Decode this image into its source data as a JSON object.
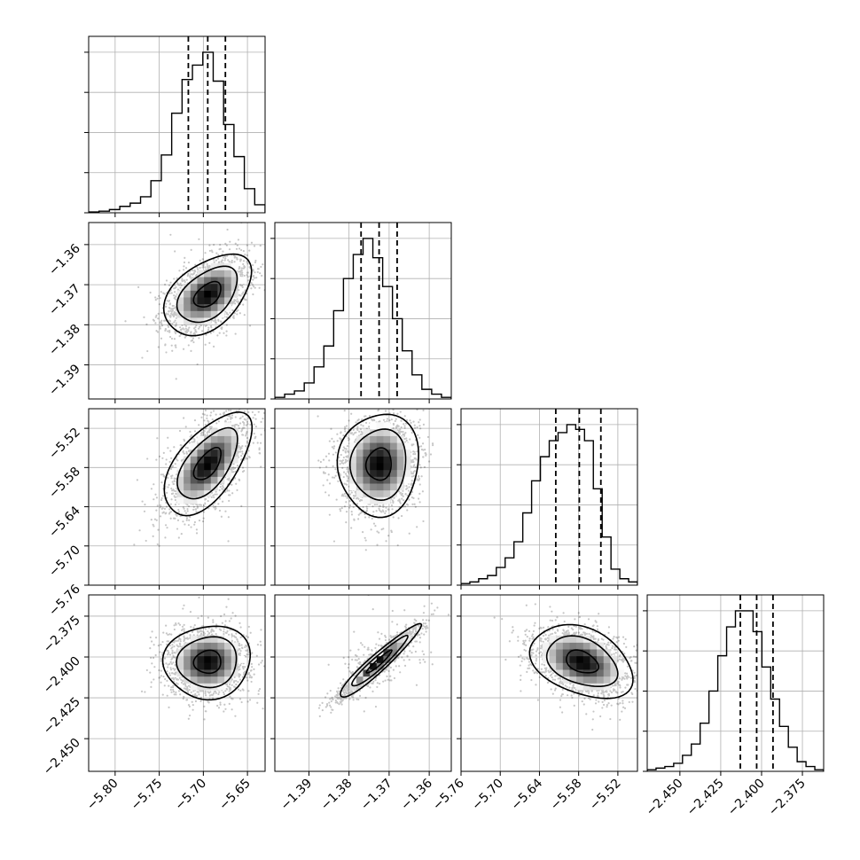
{
  "chart_data": {
    "type": "corner",
    "grid": true,
    "parameters": [
      {
        "range": [
          -5.83,
          -5.63
        ],
        "ticks": [
          -5.8,
          -5.75,
          -5.7,
          -5.65
        ],
        "tick_labels": [
          "−5.80",
          "−5.75",
          "−5.70",
          "−5.65"
        ],
        "peak": -5.695,
        "sigma": 0.022,
        "quantiles": [
          -5.717,
          -5.695,
          -5.675
        ],
        "hist_counts": [
          0.005,
          0.01,
          0.02,
          0.04,
          0.06,
          0.1,
          0.2,
          0.36,
          0.62,
          0.83,
          0.92,
          1.0,
          0.82,
          0.55,
          0.35,
          0.15,
          0.05
        ]
      },
      {
        "range": [
          -1.3985,
          -1.3545
        ],
        "ticks": [
          -1.39,
          -1.38,
          -1.37,
          -1.36
        ],
        "tick_labels": [
          "−1.39",
          "−1.38",
          "−1.37",
          "−1.36"
        ],
        "peak": -1.3725,
        "sigma": 0.0045,
        "quantiles": [
          -1.377,
          -1.3725,
          -1.368
        ],
        "hist_counts": [
          0.01,
          0.03,
          0.05,
          0.1,
          0.2,
          0.33,
          0.55,
          0.75,
          0.9,
          1.0,
          0.88,
          0.7,
          0.5,
          0.3,
          0.15,
          0.06,
          0.03,
          0.01
        ]
      },
      {
        "range": [
          -5.76,
          -5.49
        ],
        "ticks": [
          -5.76,
          -5.7,
          -5.64,
          -5.58,
          -5.52
        ],
        "tick_labels": [
          "−5.76",
          "−5.70",
          "−5.64",
          "−5.58",
          "−5.52"
        ],
        "peak": -5.575,
        "sigma": 0.035,
        "quantiles": [
          -5.615,
          -5.579,
          -5.546
        ],
        "hist_counts": [
          0.01,
          0.02,
          0.04,
          0.06,
          0.11,
          0.17,
          0.27,
          0.45,
          0.65,
          0.8,
          0.9,
          0.95,
          1.0,
          0.97,
          0.9,
          0.6,
          0.3,
          0.1,
          0.04,
          0.02
        ]
      },
      {
        "range": [
          -2.47,
          -2.362
        ],
        "ticks": [
          -2.45,
          -2.425,
          -2.4,
          -2.375
        ],
        "tick_labels": [
          "−2.450",
          "−2.425",
          "−2.400",
          "−2.375"
        ],
        "peak": -2.403,
        "sigma": 0.01,
        "quantiles": [
          -2.413,
          -2.403,
          -2.393
        ],
        "hist_counts": [
          0.01,
          0.02,
          0.03,
          0.05,
          0.1,
          0.17,
          0.3,
          0.5,
          0.72,
          0.9,
          1.0,
          1.0,
          0.87,
          0.65,
          0.45,
          0.28,
          0.15,
          0.06,
          0.03,
          0.01
        ]
      }
    ],
    "correlations": {
      "1-0": 0.45,
      "2-0": 0.6,
      "2-1": 0.05,
      "3-0": 0.05,
      "3-1": 0.95,
      "3-2": -0.35
    },
    "marginal_axes": {
      "show_tick_labels": false
    },
    "x_tick_rotation_deg": 45,
    "y_tick_rotation_deg": 45
  }
}
